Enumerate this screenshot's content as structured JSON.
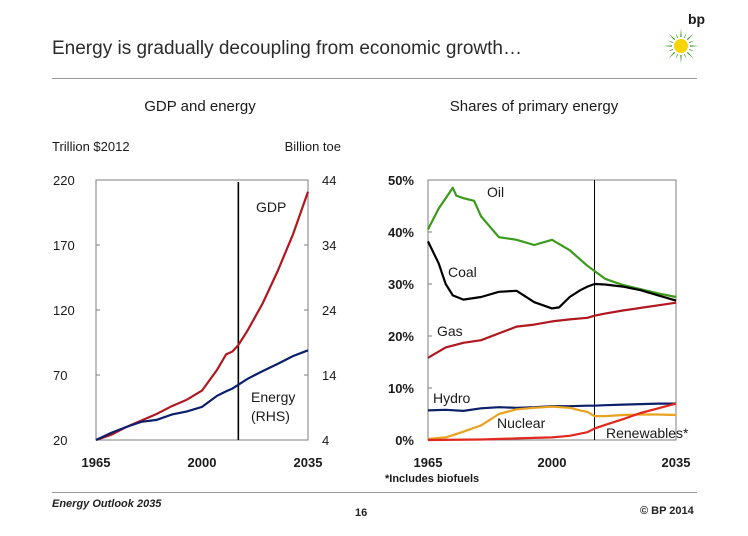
{
  "slide": {
    "title": "Energy is gradually decoupling from economic growth…",
    "logo_text": "bp",
    "footer_left": "Energy Outlook 2035",
    "page_number": "16",
    "copyright": "© BP 2014"
  },
  "colors": {
    "gdp": "#b0171f",
    "energy": "#0b1f6b",
    "oil": "#3a9a1a",
    "coal": "#000000",
    "gas": "#b0171f",
    "hydro": "#0b1f6b",
    "nuclear": "#e8a21e",
    "renewables": "#e0281e",
    "logo_green": "#2d8a18",
    "logo_yellow": "#f7d408"
  },
  "chart_data": [
    {
      "type": "line",
      "title": "GDP and energy",
      "ylabel_left": "Trillion $2012",
      "ylabel_right": "Billion toe",
      "xlim": [
        1965,
        2035
      ],
      "ylim_left": [
        20,
        220
      ],
      "ylim_right": [
        4,
        44
      ],
      "xticks": [
        "1965",
        "2000",
        "2035"
      ],
      "yticks_left": [
        "220",
        "170",
        "120",
        "70",
        "20"
      ],
      "yticks_right": [
        "44",
        "34",
        "24",
        "14",
        "4"
      ],
      "vertical_marker_x": 2012,
      "annotations": {
        "gdp": "GDP",
        "energy_1": "Energy",
        "energy_2": "(RHS)"
      },
      "series": [
        {
          "name": "GDP",
          "axis": "left",
          "x": [
            1965,
            1970,
            1975,
            1980,
            1985,
            1990,
            1995,
            2000,
            2005,
            2008,
            2010,
            2012,
            2015,
            2020,
            2025,
            2030,
            2035
          ],
          "y": [
            20,
            24,
            30,
            35,
            40,
            46,
            51,
            58,
            74,
            86,
            88,
            93,
            104,
            125,
            150,
            178,
            211
          ]
        },
        {
          "name": "Energy",
          "axis": "right",
          "x": [
            1965,
            1970,
            1975,
            1980,
            1985,
            1990,
            1995,
            2000,
            2005,
            2008,
            2010,
            2012,
            2015,
            2020,
            2025,
            2030,
            2035
          ],
          "y": [
            4.0,
            5.1,
            6.0,
            6.8,
            7.1,
            7.9,
            8.4,
            9.1,
            10.8,
            11.5,
            11.9,
            12.5,
            13.4,
            14.6,
            15.7,
            16.9,
            17.8
          ]
        }
      ]
    },
    {
      "type": "line",
      "title": "Shares of primary energy",
      "xlim": [
        1965,
        2035
      ],
      "ylim": [
        0,
        50
      ],
      "xticks": [
        "1965",
        "2000",
        "2035"
      ],
      "yticks": [
        "50%",
        "40%",
        "30%",
        "20%",
        "10%",
        "0%"
      ],
      "vertical_marker_x": 2012,
      "footnote": "*Includes biofuels",
      "series": [
        {
          "name": "Oil",
          "x": [
            1965,
            1968,
            1970,
            1972,
            1973,
            1975,
            1978,
            1980,
            1985,
            1990,
            1995,
            2000,
            2005,
            2010,
            2012,
            2015,
            2020,
            2025,
            2030,
            2035
          ],
          "y": [
            40.5,
            44.5,
            46.5,
            48.5,
            47,
            46.5,
            46,
            43,
            39,
            38.5,
            37.5,
            38.5,
            36.5,
            33.5,
            32.5,
            31,
            29.8,
            29,
            28.2,
            27.5
          ]
        },
        {
          "name": "Coal",
          "x": [
            1965,
            1968,
            1970,
            1972,
            1975,
            1980,
            1985,
            1990,
            1995,
            2000,
            2002,
            2005,
            2008,
            2010,
            2012,
            2015,
            2020,
            2025,
            2030,
            2035
          ],
          "y": [
            38.2,
            34,
            30,
            27.8,
            27,
            27.5,
            28.5,
            28.7,
            26.5,
            25.3,
            25.5,
            27.5,
            28.8,
            29.5,
            30,
            29.9,
            29.5,
            28.8,
            27.8,
            26.8
          ]
        },
        {
          "name": "Gas",
          "x": [
            1965,
            1970,
            1975,
            1980,
            1985,
            1990,
            1995,
            2000,
            2005,
            2010,
            2012,
            2015,
            2020,
            2025,
            2030,
            2035
          ],
          "y": [
            15.8,
            17.8,
            18.7,
            19.2,
            20.5,
            21.8,
            22.2,
            22.8,
            23.2,
            23.5,
            23.9,
            24.3,
            24.9,
            25.4,
            25.9,
            26.4
          ]
        },
        {
          "name": "Hydro",
          "x": [
            1965,
            1970,
            1975,
            1980,
            1985,
            1990,
            1995,
            2000,
            2005,
            2010,
            2012,
            2015,
            2020,
            2025,
            2030,
            2035
          ],
          "y": [
            5.7,
            5.8,
            5.6,
            6.1,
            6.3,
            6.2,
            6.3,
            6.5,
            6.5,
            6.6,
            6.6,
            6.7,
            6.8,
            6.9,
            7.0,
            7.0
          ]
        },
        {
          "name": "Nuclear",
          "x": [
            1965,
            1970,
            1975,
            1980,
            1985,
            1990,
            1995,
            2000,
            2005,
            2008,
            2010,
            2012,
            2015,
            2020,
            2025,
            2030,
            2035
          ],
          "y": [
            0.2,
            0.5,
            1.6,
            2.8,
            5.0,
            5.9,
            6.2,
            6.4,
            6.2,
            5.7,
            5.4,
            4.6,
            4.6,
            4.8,
            4.9,
            4.9,
            4.8
          ]
        },
        {
          "name": "Renewables*",
          "x": [
            1965,
            1980,
            1990,
            2000,
            2005,
            2010,
            2012,
            2015,
            2020,
            2025,
            2030,
            2035
          ],
          "y": [
            0,
            0.1,
            0.3,
            0.5,
            0.8,
            1.5,
            2.2,
            2.9,
            4.0,
            5.2,
            6.1,
            7.0
          ]
        }
      ]
    }
  ]
}
